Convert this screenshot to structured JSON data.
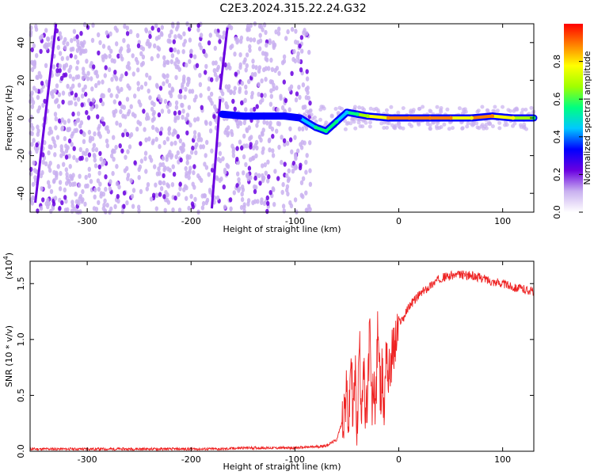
{
  "title": "C2E3.2024.315.22.24.G32",
  "chart_data": [
    {
      "type": "heatmap",
      "xlabel": "Height of straight line (km)",
      "ylabel": "Frequency (Hz)",
      "xlim": [
        -355,
        130
      ],
      "ylim": [
        -50,
        50
      ],
      "x_ticks": [
        -300,
        -200,
        -100,
        0,
        100
      ],
      "y_ticks": [
        -40,
        -20,
        0,
        20,
        40
      ],
      "colorbar": {
        "label": "Normalized spectral amplitude",
        "range": [
          0,
          1
        ],
        "ticks": [
          0.0,
          0.2,
          0.4,
          0.6,
          0.8
        ],
        "tick_labels": [
          "0.0",
          "0.2",
          "0.4",
          "0.6",
          "0.8"
        ]
      },
      "colormap": [
        "#ffffff",
        "#c9b0f0",
        "#6a00e0",
        "#0000ff",
        "#00c8ff",
        "#00ff80",
        "#a0ff00",
        "#ffff00",
        "#ff8000",
        "#ff0000"
      ],
      "noise_region": {
        "x": [
          -355,
          -85
        ],
        "level": 0.1
      },
      "streaks": [
        {
          "x0": -350,
          "y0": -45,
          "x1": -330,
          "y1": 50,
          "level": 0.2
        },
        {
          "x0": -180,
          "y0": -48,
          "x1": -172,
          "y1": 10,
          "level": 0.2
        },
        {
          "x0": -172,
          "y0": 15,
          "x1": -165,
          "y1": 48,
          "level": 0.2
        }
      ],
      "signal_track": [
        {
          "x": -170,
          "y": 2,
          "level": 0.35
        },
        {
          "x": -150,
          "y": 1,
          "level": 0.35
        },
        {
          "x": -130,
          "y": 1,
          "level": 0.35
        },
        {
          "x": -110,
          "y": 1,
          "level": 0.35
        },
        {
          "x": -95,
          "y": 0,
          "level": 0.35
        },
        {
          "x": -80,
          "y": -5,
          "level": 0.55
        },
        {
          "x": -70,
          "y": -7,
          "level": 0.55
        },
        {
          "x": -60,
          "y": -2,
          "level": 0.5
        },
        {
          "x": -50,
          "y": 3,
          "level": 0.45
        },
        {
          "x": -40,
          "y": 2,
          "level": 0.55
        },
        {
          "x": -30,
          "y": 1,
          "level": 0.7
        },
        {
          "x": -10,
          "y": 0,
          "level": 0.85
        },
        {
          "x": 10,
          "y": 0,
          "level": 0.9
        },
        {
          "x": 30,
          "y": 0,
          "level": 0.9
        },
        {
          "x": 50,
          "y": 0,
          "level": 0.85
        },
        {
          "x": 70,
          "y": 0,
          "level": 0.8
        },
        {
          "x": 90,
          "y": 1,
          "level": 0.9
        },
        {
          "x": 110,
          "y": 0,
          "level": 0.75
        },
        {
          "x": 130,
          "y": 0,
          "level": 0.6
        }
      ]
    },
    {
      "type": "line",
      "xlabel": "Height of straight line (km)",
      "ylabel": "SNR (10 * v/v)",
      "y_multiplier_label": "(x10",
      "y_multiplier_exponent": "4",
      "xlim": [
        -355,
        130
      ],
      "ylim": [
        0,
        1.7
      ],
      "x_ticks": [
        -300,
        -200,
        -100,
        0,
        100
      ],
      "y_ticks": [
        0.0,
        0.5,
        1.0,
        1.5
      ],
      "y_tick_labels": [
        "0.0",
        "0.5",
        "1.0",
        "1.5"
      ],
      "color": "#ee2222",
      "series": [
        {
          "x": [
            -355,
            -300,
            -250,
            -200,
            -170,
            -150,
            -120,
            -100,
            -80,
            -70,
            -60,
            -55,
            -50,
            -48,
            -46,
            -44,
            -42,
            -40,
            -38,
            -36,
            -34,
            -32,
            -30,
            -28,
            -26,
            -24,
            -22,
            -20,
            -18,
            -16,
            -14,
            -12,
            -10,
            -8,
            -5,
            -2,
            0,
            5,
            10,
            15,
            20,
            30,
            40,
            50,
            60,
            70,
            80,
            90,
            100,
            110,
            120,
            130
          ],
          "y": [
            0.02,
            0.02,
            0.02,
            0.02,
            0.02,
            0.03,
            0.03,
            0.03,
            0.04,
            0.05,
            0.1,
            0.25,
            0.5,
            0.2,
            0.9,
            0.3,
            0.7,
            0.15,
            1.0,
            0.4,
            0.8,
            0.2,
            0.5,
            1.1,
            0.35,
            0.6,
            0.4,
            1.2,
            0.5,
            0.7,
            0.3,
            1.05,
            0.6,
            0.8,
            0.9,
            1.0,
            1.15,
            1.2,
            1.3,
            1.35,
            1.4,
            1.48,
            1.55,
            1.57,
            1.58,
            1.57,
            1.55,
            1.52,
            1.5,
            1.47,
            1.45,
            1.43
          ]
        }
      ]
    }
  ]
}
